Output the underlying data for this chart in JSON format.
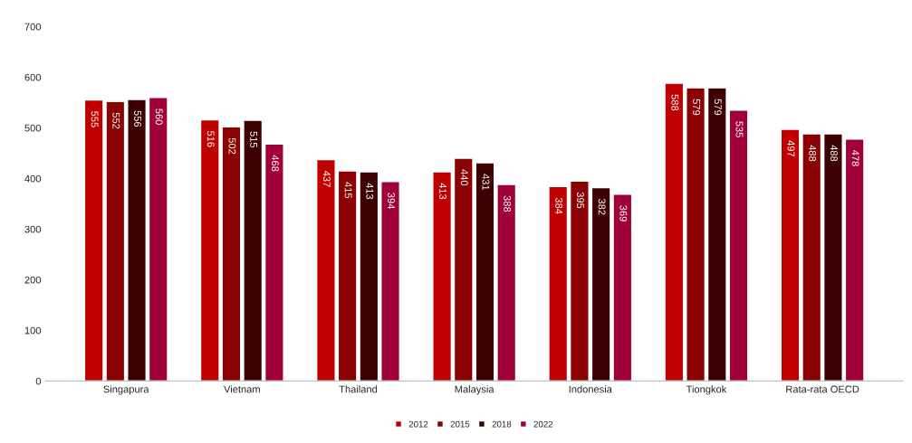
{
  "chart_data": {
    "type": "bar",
    "categories": [
      "Singapura",
      "Vietnam",
      "Thailand",
      "Malaysia",
      "Indonesia",
      "Tiongkok",
      "Rata-rata OECD"
    ],
    "series": [
      {
        "name": "2012",
        "color": "#c00000",
        "values": [
          555,
          516,
          437,
          413,
          384,
          588,
          497
        ]
      },
      {
        "name": "2015",
        "color": "#8b0000",
        "values": [
          552,
          502,
          415,
          440,
          395,
          579,
          488
        ]
      },
      {
        "name": "2018",
        "color": "#3d0000",
        "values": [
          556,
          515,
          413,
          431,
          382,
          579,
          488
        ]
      },
      {
        "name": "2022",
        "color": "#a0003a",
        "values": [
          560,
          468,
          394,
          388,
          369,
          535,
          478
        ]
      }
    ],
    "ylim": [
      0,
      700
    ],
    "yticks": [
      0,
      100,
      200,
      300,
      400,
      500,
      600,
      700
    ],
    "grid": false,
    "legend": "bottom",
    "data_labels": true
  }
}
